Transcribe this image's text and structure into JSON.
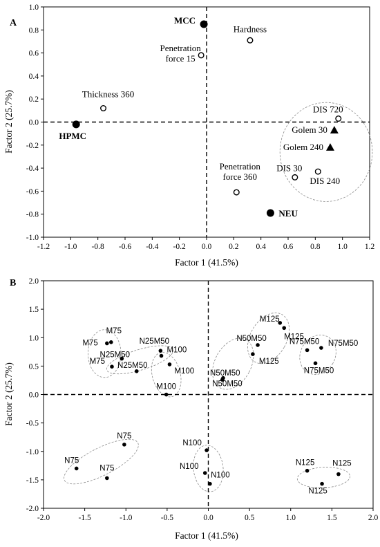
{
  "chart_data": [
    {
      "panel_label": "A",
      "type": "scatter",
      "xlabel": "Factor 1 (41.5%)",
      "ylabel": "Factor 2 (25.7%)",
      "xlim": [
        -1.2,
        1.2
      ],
      "ylim": [
        -1.0,
        1.0
      ],
      "xticks": [
        "-1.2",
        "-1.0",
        "-0.8",
        "-0.6",
        "-0.4",
        "-0.2",
        "0.0",
        "0.2",
        "0.4",
        "0.6",
        "0.8",
        "1.0",
        "1.2"
      ],
      "yticks": [
        "-1.0",
        "-0.8",
        "-0.6",
        "-0.4",
        "-0.2",
        "0.0",
        "0.2",
        "0.4",
        "0.6",
        "0.8",
        "1.0"
      ],
      "reference_lines": {
        "x": 0,
        "y": 0
      },
      "points": [
        {
          "label": "MCC",
          "x": -0.02,
          "y": 0.85,
          "marker": "filled-circle",
          "bold": true
        },
        {
          "label": "HPMC",
          "x": -0.96,
          "y": -0.02,
          "marker": "filled-circle",
          "bold": true
        },
        {
          "label": "NEU",
          "x": 0.47,
          "y": -0.79,
          "marker": "filled-circle",
          "bold": true
        },
        {
          "label": "Hardness",
          "x": 0.32,
          "y": 0.71,
          "marker": "open-circle"
        },
        {
          "label": "Penetration force 15",
          "x": -0.04,
          "y": 0.58,
          "marker": "open-circle"
        },
        {
          "label": "Thickness 360",
          "x": -0.76,
          "y": 0.12,
          "marker": "open-circle"
        },
        {
          "label": "DIS 720",
          "x": 0.97,
          "y": 0.03,
          "marker": "open-circle"
        },
        {
          "label": "Golem 30",
          "x": 0.94,
          "y": -0.07,
          "marker": "triangle"
        },
        {
          "label": "Golem 240",
          "x": 0.91,
          "y": -0.22,
          "marker": "triangle"
        },
        {
          "label": "DIS 30",
          "x": 0.65,
          "y": -0.48,
          "marker": "open-circle"
        },
        {
          "label": "DIS 240",
          "x": 0.82,
          "y": -0.43,
          "marker": "open-circle"
        },
        {
          "label": "Penetration force 360",
          "x": 0.22,
          "y": -0.61,
          "marker": "open-circle"
        }
      ]
    },
    {
      "panel_label": "B",
      "type": "scatter",
      "xlabel": "Factor 1 (41.5%)",
      "ylabel": "Factor 2 (25.7%)",
      "xlim": [
        -2.0,
        2.0
      ],
      "ylim": [
        -2.0,
        2.0
      ],
      "xticks": [
        "-2.0",
        "-1.5",
        "-1.0",
        "-0.5",
        "0.0",
        "0.5",
        "1.0",
        "1.5",
        "2.0"
      ],
      "yticks": [
        "-2.0",
        "-1.5",
        "-1.0",
        "-0.5",
        "0.0",
        "0.5",
        "1.0",
        "1.5",
        "2.0"
      ],
      "reference_lines": {
        "x": 0,
        "y": 0
      },
      "points": [
        {
          "label": "M75",
          "x": -1.23,
          "y": 0.9
        },
        {
          "label": "M75",
          "x": -1.18,
          "y": 0.92
        },
        {
          "label": "M75",
          "x": -1.17,
          "y": 0.49
        },
        {
          "label": "N25M50",
          "x": -1.05,
          "y": 0.63
        },
        {
          "label": "N25M50",
          "x": -0.87,
          "y": 0.41
        },
        {
          "label": "N25M50",
          "x": -0.58,
          "y": 0.77
        },
        {
          "label": "M100",
          "x": -0.57,
          "y": 0.68
        },
        {
          "label": "M100",
          "x": -0.47,
          "y": 0.53
        },
        {
          "label": "M100",
          "x": -0.51,
          "y": 0.0
        },
        {
          "label": "N50M50",
          "x": 0.17,
          "y": 0.26
        },
        {
          "label": "N50M50",
          "x": 0.18,
          "y": 0.29
        },
        {
          "label": "N50M50",
          "x": 0.6,
          "y": 0.87
        },
        {
          "label": "M125",
          "x": 0.54,
          "y": 0.71
        },
        {
          "label": "M125",
          "x": 0.87,
          "y": 1.26
        },
        {
          "label": "M125",
          "x": 0.92,
          "y": 1.17
        },
        {
          "label": "N75M50",
          "x": 1.2,
          "y": 0.78
        },
        {
          "label": "N75M50",
          "x": 1.37,
          "y": 0.82
        },
        {
          "label": "N75M50",
          "x": 1.3,
          "y": 0.55
        },
        {
          "label": "N75",
          "x": -1.6,
          "y": -1.3
        },
        {
          "label": "N75",
          "x": -1.02,
          "y": -0.88
        },
        {
          "label": "N75",
          "x": -1.23,
          "y": -1.47
        },
        {
          "label": "N100",
          "x": -0.02,
          "y": -0.98
        },
        {
          "label": "N100",
          "x": -0.04,
          "y": -1.38
        },
        {
          "label": "N100",
          "x": 0.02,
          "y": -1.57
        },
        {
          "label": "N125",
          "x": 1.2,
          "y": -1.34
        },
        {
          "label": "N125",
          "x": 1.38,
          "y": -1.57
        },
        {
          "label": "N125",
          "x": 1.58,
          "y": -1.4
        }
      ]
    }
  ]
}
